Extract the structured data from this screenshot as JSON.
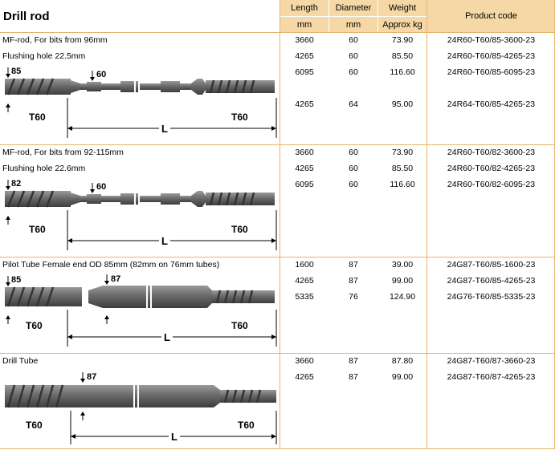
{
  "page": {
    "title": "Drill rod",
    "columns": {
      "length": {
        "label": "Length",
        "unit": "mm"
      },
      "diameter": {
        "label": "Diameter",
        "unit": "mm"
      },
      "weight": {
        "label": "Weight",
        "unit": "Approx kg"
      },
      "product_code": {
        "label": "Product code"
      }
    }
  },
  "sections": [
    {
      "desc1": "MF-rod, For bits  from 96mm",
      "desc2": "Flushing hole 22.5mm",
      "draw": {
        "left_dim": "85",
        "mid_dim": "60",
        "left_thread": "T60",
        "right_thread": "T60",
        "length_label": "L"
      },
      "rows": [
        {
          "length": "3660",
          "diameter": "60",
          "weight": "73.90",
          "code": "24R60-T60/85-3600-23"
        },
        {
          "length": "4265",
          "diameter": "60",
          "weight": "85.50",
          "code": "24R60-T60/85-4265-23"
        },
        {
          "length": "6095",
          "diameter": "60",
          "weight": "116.60",
          "code": "24R60-T60/85-6095-23"
        },
        {
          "length": "4265",
          "diameter": "64",
          "weight": "95.00",
          "code": "24R64-T60/85-4265-23"
        }
      ]
    },
    {
      "desc1": "MF-rod, For bits  from 92-115mm",
      "desc2": "Flushing hole 22.6mm",
      "draw": {
        "left_dim": "82",
        "mid_dim": "60",
        "left_thread": "T60",
        "right_thread": "T60",
        "length_label": "L"
      },
      "rows": [
        {
          "length": "3660",
          "diameter": "60",
          "weight": "73.90",
          "code": "24R60-T60/82-3600-23"
        },
        {
          "length": "4265",
          "diameter": "60",
          "weight": "85.50",
          "code": "24R60-T60/82-4265-23"
        },
        {
          "length": "6095",
          "diameter": "60",
          "weight": "116.60",
          "code": "24R60-T60/82-6095-23"
        }
      ]
    },
    {
      "desc1": "Pilot Tube   Female end OD 85mm (82mm on 76mm tubes)",
      "desc2": "",
      "draw": {
        "left_dim": "85",
        "mid_dim": "87",
        "left_thread": "T60",
        "right_thread": "T60",
        "length_label": "L"
      },
      "rows": [
        {
          "length": "1600",
          "diameter": "87",
          "weight": "39.00",
          "code": "24G87-T60/85-1600-23"
        },
        {
          "length": "4265",
          "diameter": "87",
          "weight": "99.00",
          "code": "24G87-T60/85-4265-23"
        },
        {
          "length": "5335",
          "diameter": "76",
          "weight": "124.90",
          "code": "24G76-T60/85-5335-23"
        }
      ]
    },
    {
      "desc1": "Drill Tube",
      "desc2": "",
      "draw": {
        "left_dim": "",
        "mid_dim": "87",
        "left_thread": "T60",
        "right_thread": "T60",
        "length_label": "L"
      },
      "rows": [
        {
          "length": "3660",
          "diameter": "87",
          "weight": "87.80",
          "code": "24G87-T60/87-3660-23"
        },
        {
          "length": "4265",
          "diameter": "87",
          "weight": "99.00",
          "code": "24G87-T60/87-4265-23"
        }
      ]
    }
  ],
  "colors": {
    "header_bg": "#f5d8a6",
    "grid": "#e6b46a",
    "steel": "#6d6d6d"
  }
}
